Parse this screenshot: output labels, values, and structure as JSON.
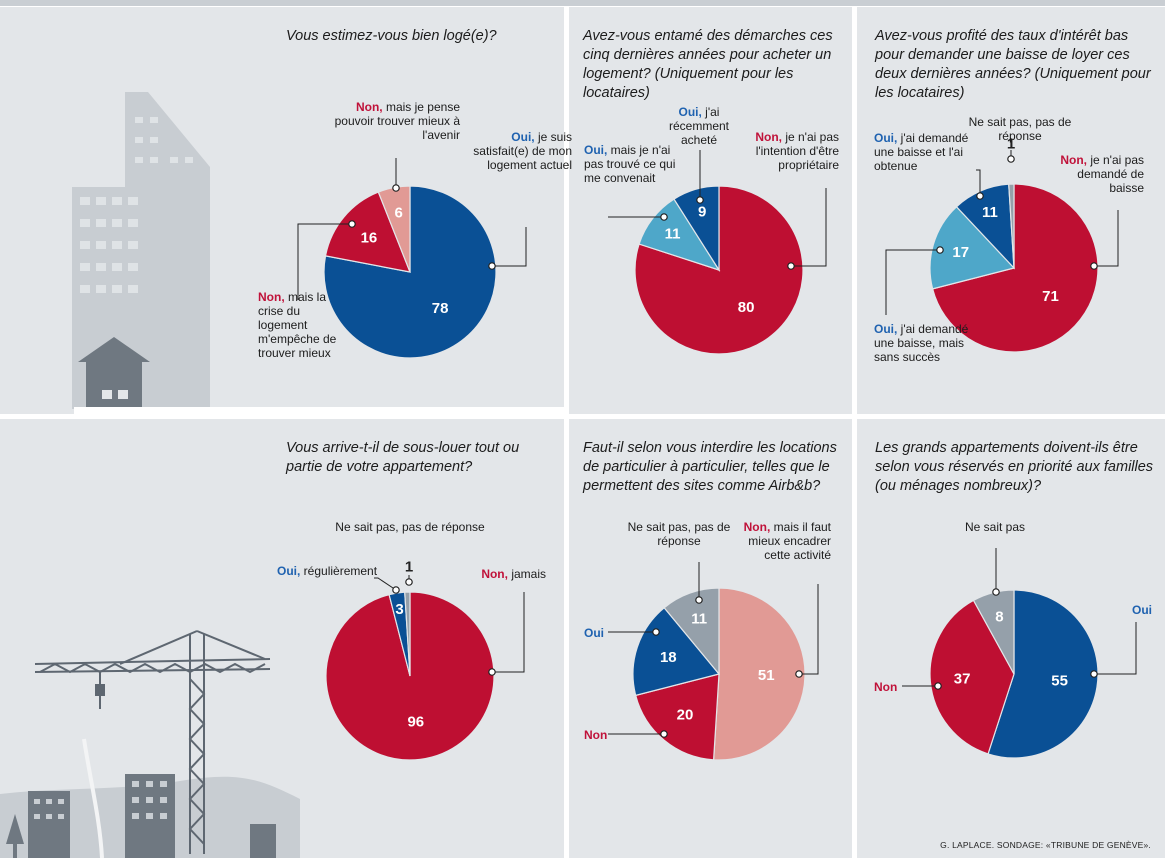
{
  "colors": {
    "oui": "#0a5095",
    "non": "#be0f32",
    "non_light": "#e19a95",
    "oui_light": "#4ea7c9",
    "nsp": "#95a0aa",
    "panel": "#e3e6e9",
    "red_text": "#c0123a",
    "blue_text": "#1f62b0"
  },
  "credit": "G. LAPLACE. SONDAGE: «TRIBUNE DE GENÈVE».",
  "chart_data": [
    {
      "type": "pie",
      "title": "Vous estimez-vous bien logé(e)?",
      "slices": [
        {
          "name": "Oui",
          "label_key": "Oui,",
          "label_rest": "je suis satisfait(e) de mon logement actuel",
          "value": 78,
          "color": "oui"
        },
        {
          "name": "Non, mais la crise du logement m'empêche de trouver mieux",
          "label_key": "Non,",
          "label_rest": "mais la crise du logement m'empêche de trouver mieux",
          "value": 16,
          "color": "non"
        },
        {
          "name": "Non, mais je pense pouvoir trouver mieux à l'avenir",
          "label_key": "Non,",
          "label_rest": "mais je pense pouvoir trouver mieux à l'avenir",
          "value": 6,
          "color": "non_light"
        }
      ]
    },
    {
      "type": "pie",
      "title": "Avez-vous entamé des démarches ces cinq dernières années pour acheter un logement? (Uniquement pour les locataires)",
      "slices": [
        {
          "name": "Non, je n'ai pas l'intention d'être propriétaire",
          "label_key": "Non,",
          "label_rest": "je n'ai pas l'intention d'être propriétaire",
          "value": 80,
          "color": "non"
        },
        {
          "name": "Oui, mais je n'ai pas trouvé ce qui me convenait",
          "label_key": "Oui,",
          "label_rest": "mais je n'ai pas trouvé ce qui me convenait",
          "value": 11,
          "color": "oui_light"
        },
        {
          "name": "Oui, j'ai récemment acheté",
          "label_key": "Oui,",
          "label_rest": "j'ai récemment acheté",
          "value": 9,
          "color": "oui"
        }
      ]
    },
    {
      "type": "pie",
      "title": "Avez-vous profité des taux d'intérêt bas pour demander une baisse de loyer ces deux dernières années? (Uniquement pour les locataires)",
      "slices": [
        {
          "name": "Non, je n'ai pas demandé de baisse",
          "label_key": "Non,",
          "label_rest": "je n'ai pas demandé de baisse",
          "value": 71,
          "color": "non"
        },
        {
          "name": "Oui, j'ai demandé une baisse, mais sans succès",
          "label_key": "Oui,",
          "label_rest": "j'ai demandé une baisse, mais sans succès",
          "value": 17,
          "color": "oui_light"
        },
        {
          "name": "Oui, j'ai demandé une baisse et l'ai obtenue",
          "label_key": "Oui,",
          "label_rest": "j'ai demandé une baisse et l'ai obtenue",
          "value": 11,
          "color": "oui"
        },
        {
          "name": "Ne sait pas, pas de réponse",
          "label_key": "",
          "label_rest": "Ne sait pas, pas de réponse",
          "value": 1,
          "color": "nsp"
        }
      ]
    },
    {
      "type": "pie",
      "title": "Vous arrive-t-il de sous-louer tout ou partie de votre appartement?",
      "slices": [
        {
          "name": "Non, jamais",
          "label_key": "Non,",
          "label_rest": "jamais",
          "value": 96,
          "color": "non"
        },
        {
          "name": "Oui, régulièrement",
          "label_key": "Oui,",
          "label_rest": "régulièrement",
          "value": 3,
          "color": "oui"
        },
        {
          "name": "Ne sait pas, pas de réponse",
          "label_key": "",
          "label_rest": "Ne sait pas, pas de réponse",
          "value": 1,
          "color": "nsp"
        }
      ]
    },
    {
      "type": "pie",
      "title": "Faut-il selon vous interdire les locations de particulier à particulier, telles que le permettent des sites comme Airb&b?",
      "slices": [
        {
          "name": "Non, mais il faut mieux encadrer cette activité",
          "label_key": "Non,",
          "label_rest": "mais il faut mieux encadrer cette activité",
          "value": 51,
          "color": "non_light"
        },
        {
          "name": "Non",
          "label_key": "Non",
          "label_rest": "",
          "value": 20,
          "color": "non"
        },
        {
          "name": "Oui",
          "label_key": "Oui",
          "label_rest": "",
          "value": 18,
          "color": "oui"
        },
        {
          "name": "Ne sait pas, pas de réponse",
          "label_key": "",
          "label_rest": "Ne sait pas, pas de réponse",
          "value": 11,
          "color": "nsp"
        }
      ]
    },
    {
      "type": "pie",
      "title": "Les grands appartements doivent-ils être selon vous réservés en priorité aux familles (ou ménages nombreux)?",
      "slices": [
        {
          "name": "Oui",
          "label_key": "Oui",
          "label_rest": "",
          "value": 55,
          "color": "oui"
        },
        {
          "name": "Non",
          "label_key": "Non",
          "label_rest": "",
          "value": 37,
          "color": "non"
        },
        {
          "name": "Ne sait pas",
          "label_key": "",
          "label_rest": "Ne sait pas",
          "value": 8,
          "color": "nsp"
        }
      ]
    }
  ]
}
